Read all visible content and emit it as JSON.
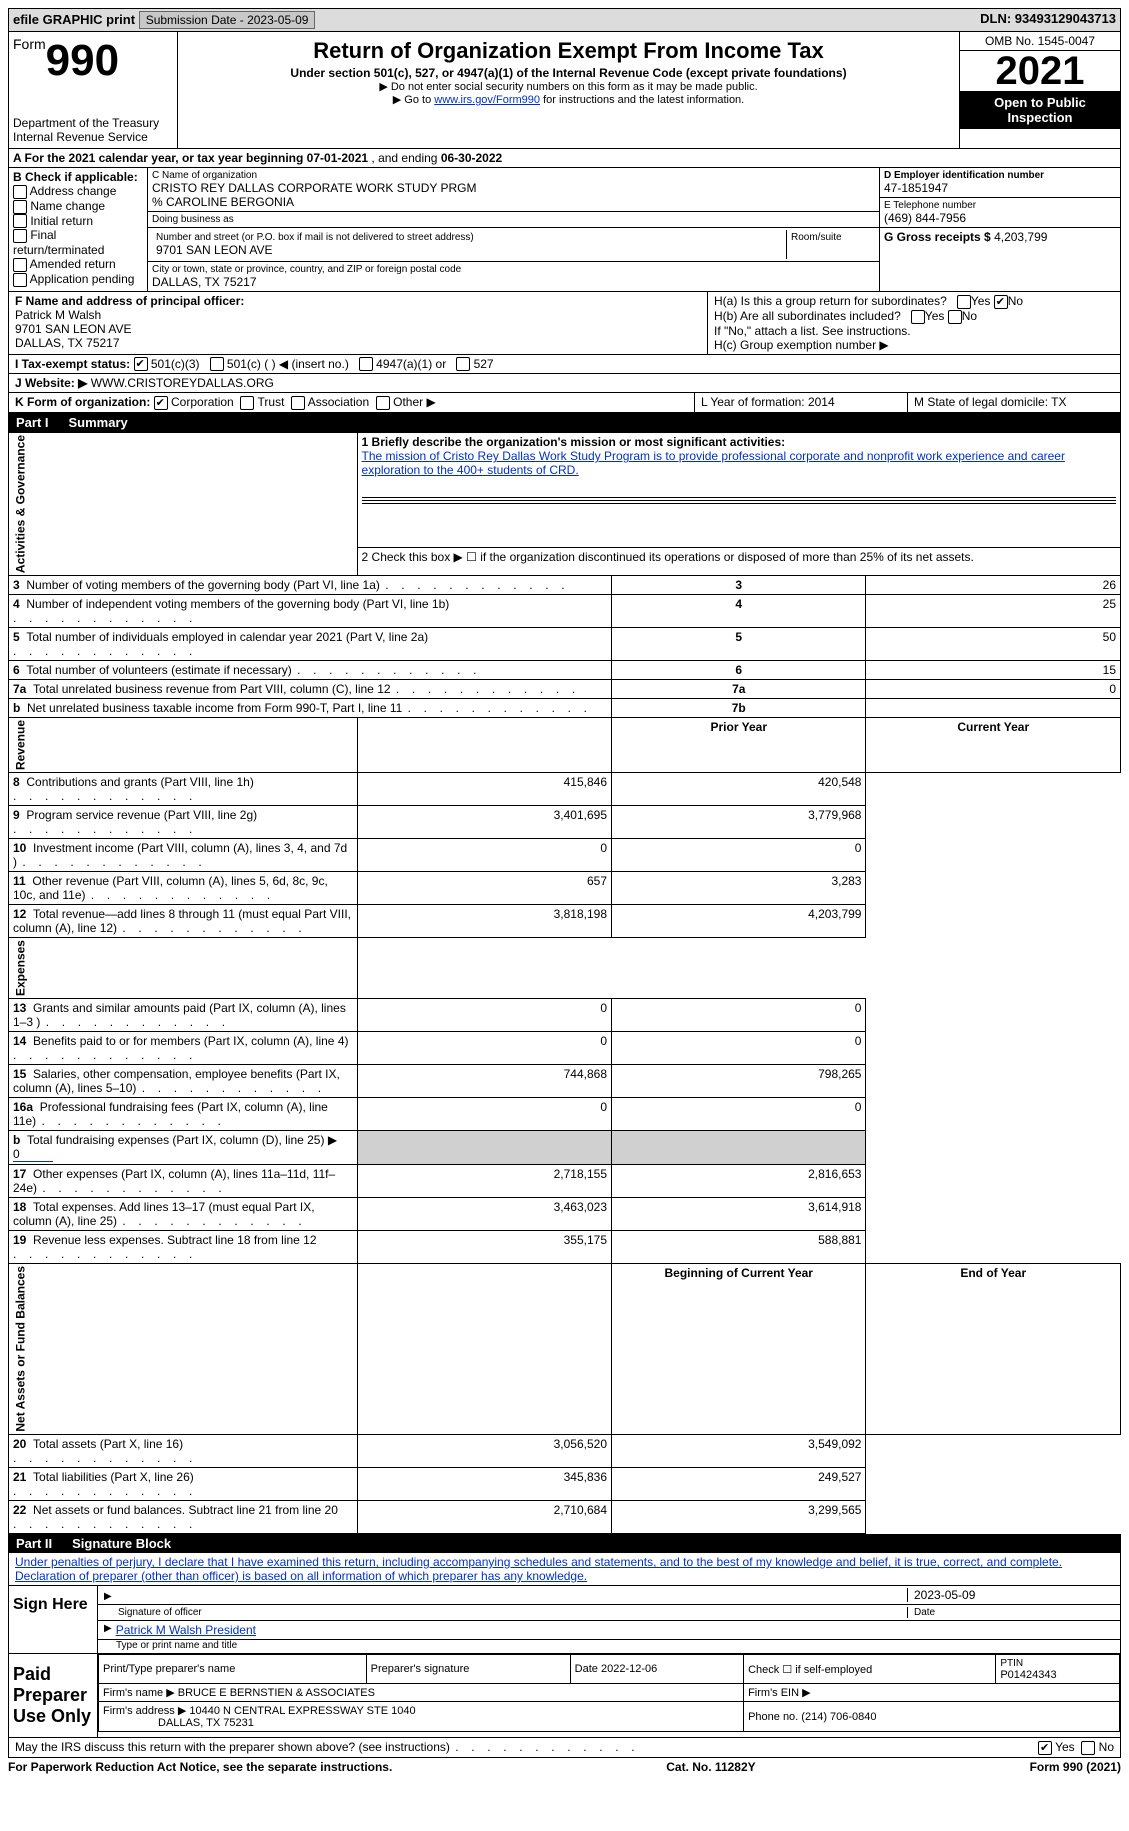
{
  "top": {
    "efile": "efile GRAPHIC print",
    "submission": "Submission Date - 2023-05-09",
    "dln": "DLN: 93493129043713"
  },
  "header": {
    "form_word": "Form",
    "form_no": "990",
    "title": "Return of Organization Exempt From Income Tax",
    "subtitle": "Under section 501(c), 527, or 4947(a)(1) of the Internal Revenue Code (except private foundations)",
    "note1": "▶ Do not enter social security numbers on this form as it may be made public.",
    "note2_pre": "▶ Go to ",
    "note2_link": "www.irs.gov/Form990",
    "note2_post": " for instructions and the latest information.",
    "dept": "Department of the Treasury",
    "irs": "Internal Revenue Service",
    "omb": "OMB No. 1545-0047",
    "year": "2021",
    "open": "Open to Public Inspection"
  },
  "rowA": {
    "label": "A For the 2021 calendar year, or tax year beginning ",
    "begin": "07-01-2021",
    "mid": " , and ending ",
    "end": "06-30-2022"
  },
  "B": {
    "label": "B Check if applicable:",
    "items": [
      "Address change",
      "Name change",
      "Initial return",
      "Final return/terminated",
      "Amended return",
      "Application pending"
    ]
  },
  "C": {
    "name_label": "C Name of organization",
    "name": "CRISTO REY DALLAS CORPORATE WORK STUDY PRGM",
    "care": "% CAROLINE BERGONIA",
    "dba_label": "Doing business as",
    "street_label": "Number and street (or P.O. box if mail is not delivered to street address)",
    "room_label": "Room/suite",
    "street": "9701 SAN LEON AVE",
    "city_label": "City or town, state or province, country, and ZIP or foreign postal code",
    "city": "DALLAS, TX  75217"
  },
  "D": {
    "label": "D Employer identification number",
    "value": "47-1851947",
    "e_label": "E Telephone number",
    "e_value": "(469) 844-7956",
    "g_label": "G Gross receipts $ ",
    "g_value": "4,203,799"
  },
  "F": {
    "label": "F Name and address of principal officer:",
    "name": "Patrick M Walsh",
    "street": "9701 SAN LEON AVE",
    "city": "DALLAS, TX  75217"
  },
  "H": {
    "a": "H(a)  Is this a group return for subordinates?",
    "b": "H(b)  Are all subordinates included?",
    "b_note": "If \"No,\" attach a list. See instructions.",
    "c": "H(c)  Group exemption number ▶"
  },
  "I": {
    "label": "I Tax-exempt status:",
    "opts": [
      "501(c)(3)",
      "501(c) (   ) ◀ (insert no.)",
      "4947(a)(1) or",
      "527"
    ]
  },
  "J": {
    "label": "J Website: ▶ ",
    "value": "WWW.CRISTOREYDALLAS.ORG"
  },
  "K": {
    "label": "K Form of organization:",
    "opts": [
      "Corporation",
      "Trust",
      "Association",
      "Other ▶"
    ],
    "L": "L Year of formation: 2014",
    "M": "M State of legal domicile: TX"
  },
  "part1": {
    "header_num": "Part I",
    "header_txt": "Summary",
    "line1_label": "1  Briefly describe the organization's mission or most significant activities:",
    "line1_text": "The mission of Cristo Rey Dallas Work Study Program is to provide professional corporate and nonprofit work experience and career exploration to the 400+ students of CRD.",
    "line2": "2   Check this box ▶ ☐ if the organization discontinued its operations or disposed of more than 25% of its net assets.",
    "rows_gov": [
      {
        "n": "3",
        "label": "Number of voting members of the governing body (Part VI, line 1a)",
        "box": "3",
        "val": "26"
      },
      {
        "n": "4",
        "label": "Number of independent voting members of the governing body (Part VI, line 1b)",
        "box": "4",
        "val": "25"
      },
      {
        "n": "5",
        "label": "Total number of individuals employed in calendar year 2021 (Part V, line 2a)",
        "box": "5",
        "val": "50"
      },
      {
        "n": "6",
        "label": "Total number of volunteers (estimate if necessary)",
        "box": "6",
        "val": "15"
      },
      {
        "n": "7a",
        "label": "Total unrelated business revenue from Part VIII, column (C), line 12",
        "box": "7a",
        "val": "0"
      },
      {
        "n": "b",
        "label": "Net unrelated business taxable income from Form 990-T, Part I, line 11",
        "box": "7b",
        "val": ""
      }
    ],
    "col_headers": {
      "prior": "Prior Year",
      "current": "Current Year",
      "begin": "Beginning of Current Year",
      "end": "End of Year"
    },
    "revenue": [
      {
        "n": "8",
        "label": "Contributions and grants (Part VIII, line 1h)",
        "p": "415,846",
        "c": "420,548"
      },
      {
        "n": "9",
        "label": "Program service revenue (Part VIII, line 2g)",
        "p": "3,401,695",
        "c": "3,779,968"
      },
      {
        "n": "10",
        "label": "Investment income (Part VIII, column (A), lines 3, 4, and 7d )",
        "p": "0",
        "c": "0"
      },
      {
        "n": "11",
        "label": "Other revenue (Part VIII, column (A), lines 5, 6d, 8c, 9c, 10c, and 11e)",
        "p": "657",
        "c": "3,283"
      },
      {
        "n": "12",
        "label": "Total revenue—add lines 8 through 11 (must equal Part VIII, column (A), line 12)",
        "p": "3,818,198",
        "c": "4,203,799"
      }
    ],
    "expenses": [
      {
        "n": "13",
        "label": "Grants and similar amounts paid (Part IX, column (A), lines 1–3 )",
        "p": "0",
        "c": "0"
      },
      {
        "n": "14",
        "label": "Benefits paid to or for members (Part IX, column (A), line 4)",
        "p": "0",
        "c": "0"
      },
      {
        "n": "15",
        "label": "Salaries, other compensation, employee benefits (Part IX, column (A), lines 5–10)",
        "p": "744,868",
        "c": "798,265"
      },
      {
        "n": "16a",
        "label": "Professional fundraising fees (Part IX, column (A), line 11e)",
        "p": "0",
        "c": "0"
      },
      {
        "n": "b",
        "label": "Total fundraising expenses (Part IX, column (D), line 25) ▶",
        "p": "shaded",
        "c": "shaded",
        "extra": "0"
      },
      {
        "n": "17",
        "label": "Other expenses (Part IX, column (A), lines 11a–11d, 11f–24e)",
        "p": "2,718,155",
        "c": "2,816,653"
      },
      {
        "n": "18",
        "label": "Total expenses. Add lines 13–17 (must equal Part IX, column (A), line 25)",
        "p": "3,463,023",
        "c": "3,614,918"
      },
      {
        "n": "19",
        "label": "Revenue less expenses. Subtract line 18 from line 12",
        "p": "355,175",
        "c": "588,881"
      }
    ],
    "netassets": [
      {
        "n": "20",
        "label": "Total assets (Part X, line 16)",
        "p": "3,056,520",
        "c": "3,549,092"
      },
      {
        "n": "21",
        "label": "Total liabilities (Part X, line 26)",
        "p": "345,836",
        "c": "249,527"
      },
      {
        "n": "22",
        "label": "Net assets or fund balances. Subtract line 21 from line 20",
        "p": "2,710,684",
        "c": "3,299,565"
      }
    ],
    "side_labels": {
      "gov": "Activities & Governance",
      "rev": "Revenue",
      "exp": "Expenses",
      "net": "Net Assets or Fund Balances"
    }
  },
  "part2": {
    "header_num": "Part II",
    "header_txt": "Signature Block",
    "declaration": "Under penalties of perjury, I declare that I have examined this return, including accompanying schedules and statements, and to the best of my knowledge and belief, it is true, correct, and complete. Declaration of preparer (other than officer) is based on all information of which preparer has any knowledge.",
    "sign_here": "Sign Here",
    "sig_officer": "Signature of officer",
    "sig_date": "2023-05-09",
    "date_label": "Date",
    "officer_name": "Patrick M Walsh  President",
    "type_name": "Type or print name and title",
    "paid": "Paid Preparer Use Only",
    "prep_name_label": "Print/Type preparer's name",
    "prep_sig_label": "Preparer's signature",
    "prep_date": "Date 2022-12-06",
    "check_self": "Check ☐ if self-employed",
    "ptin_label": "PTIN",
    "ptin": "P01424343",
    "firm_name_label": "Firm's name   ▶",
    "firm_name": "BRUCE E BERNSTIEN & ASSOCIATES",
    "firm_ein": "Firm's EIN ▶",
    "firm_addr_label": "Firm's address ▶",
    "firm_addr": "10440 N CENTRAL EXPRESSWAY STE 1040",
    "firm_city": "DALLAS, TX  75231",
    "phone_label": "Phone no.",
    "phone": "(214) 706-0840",
    "discuss": "May the IRS discuss this return with the preparer shown above? (see instructions)",
    "yes": "Yes",
    "no": "No"
  },
  "footer": {
    "left": "For Paperwork Reduction Act Notice, see the separate instructions.",
    "mid": "Cat. No. 11282Y",
    "right": "Form 990 (2021)"
  }
}
